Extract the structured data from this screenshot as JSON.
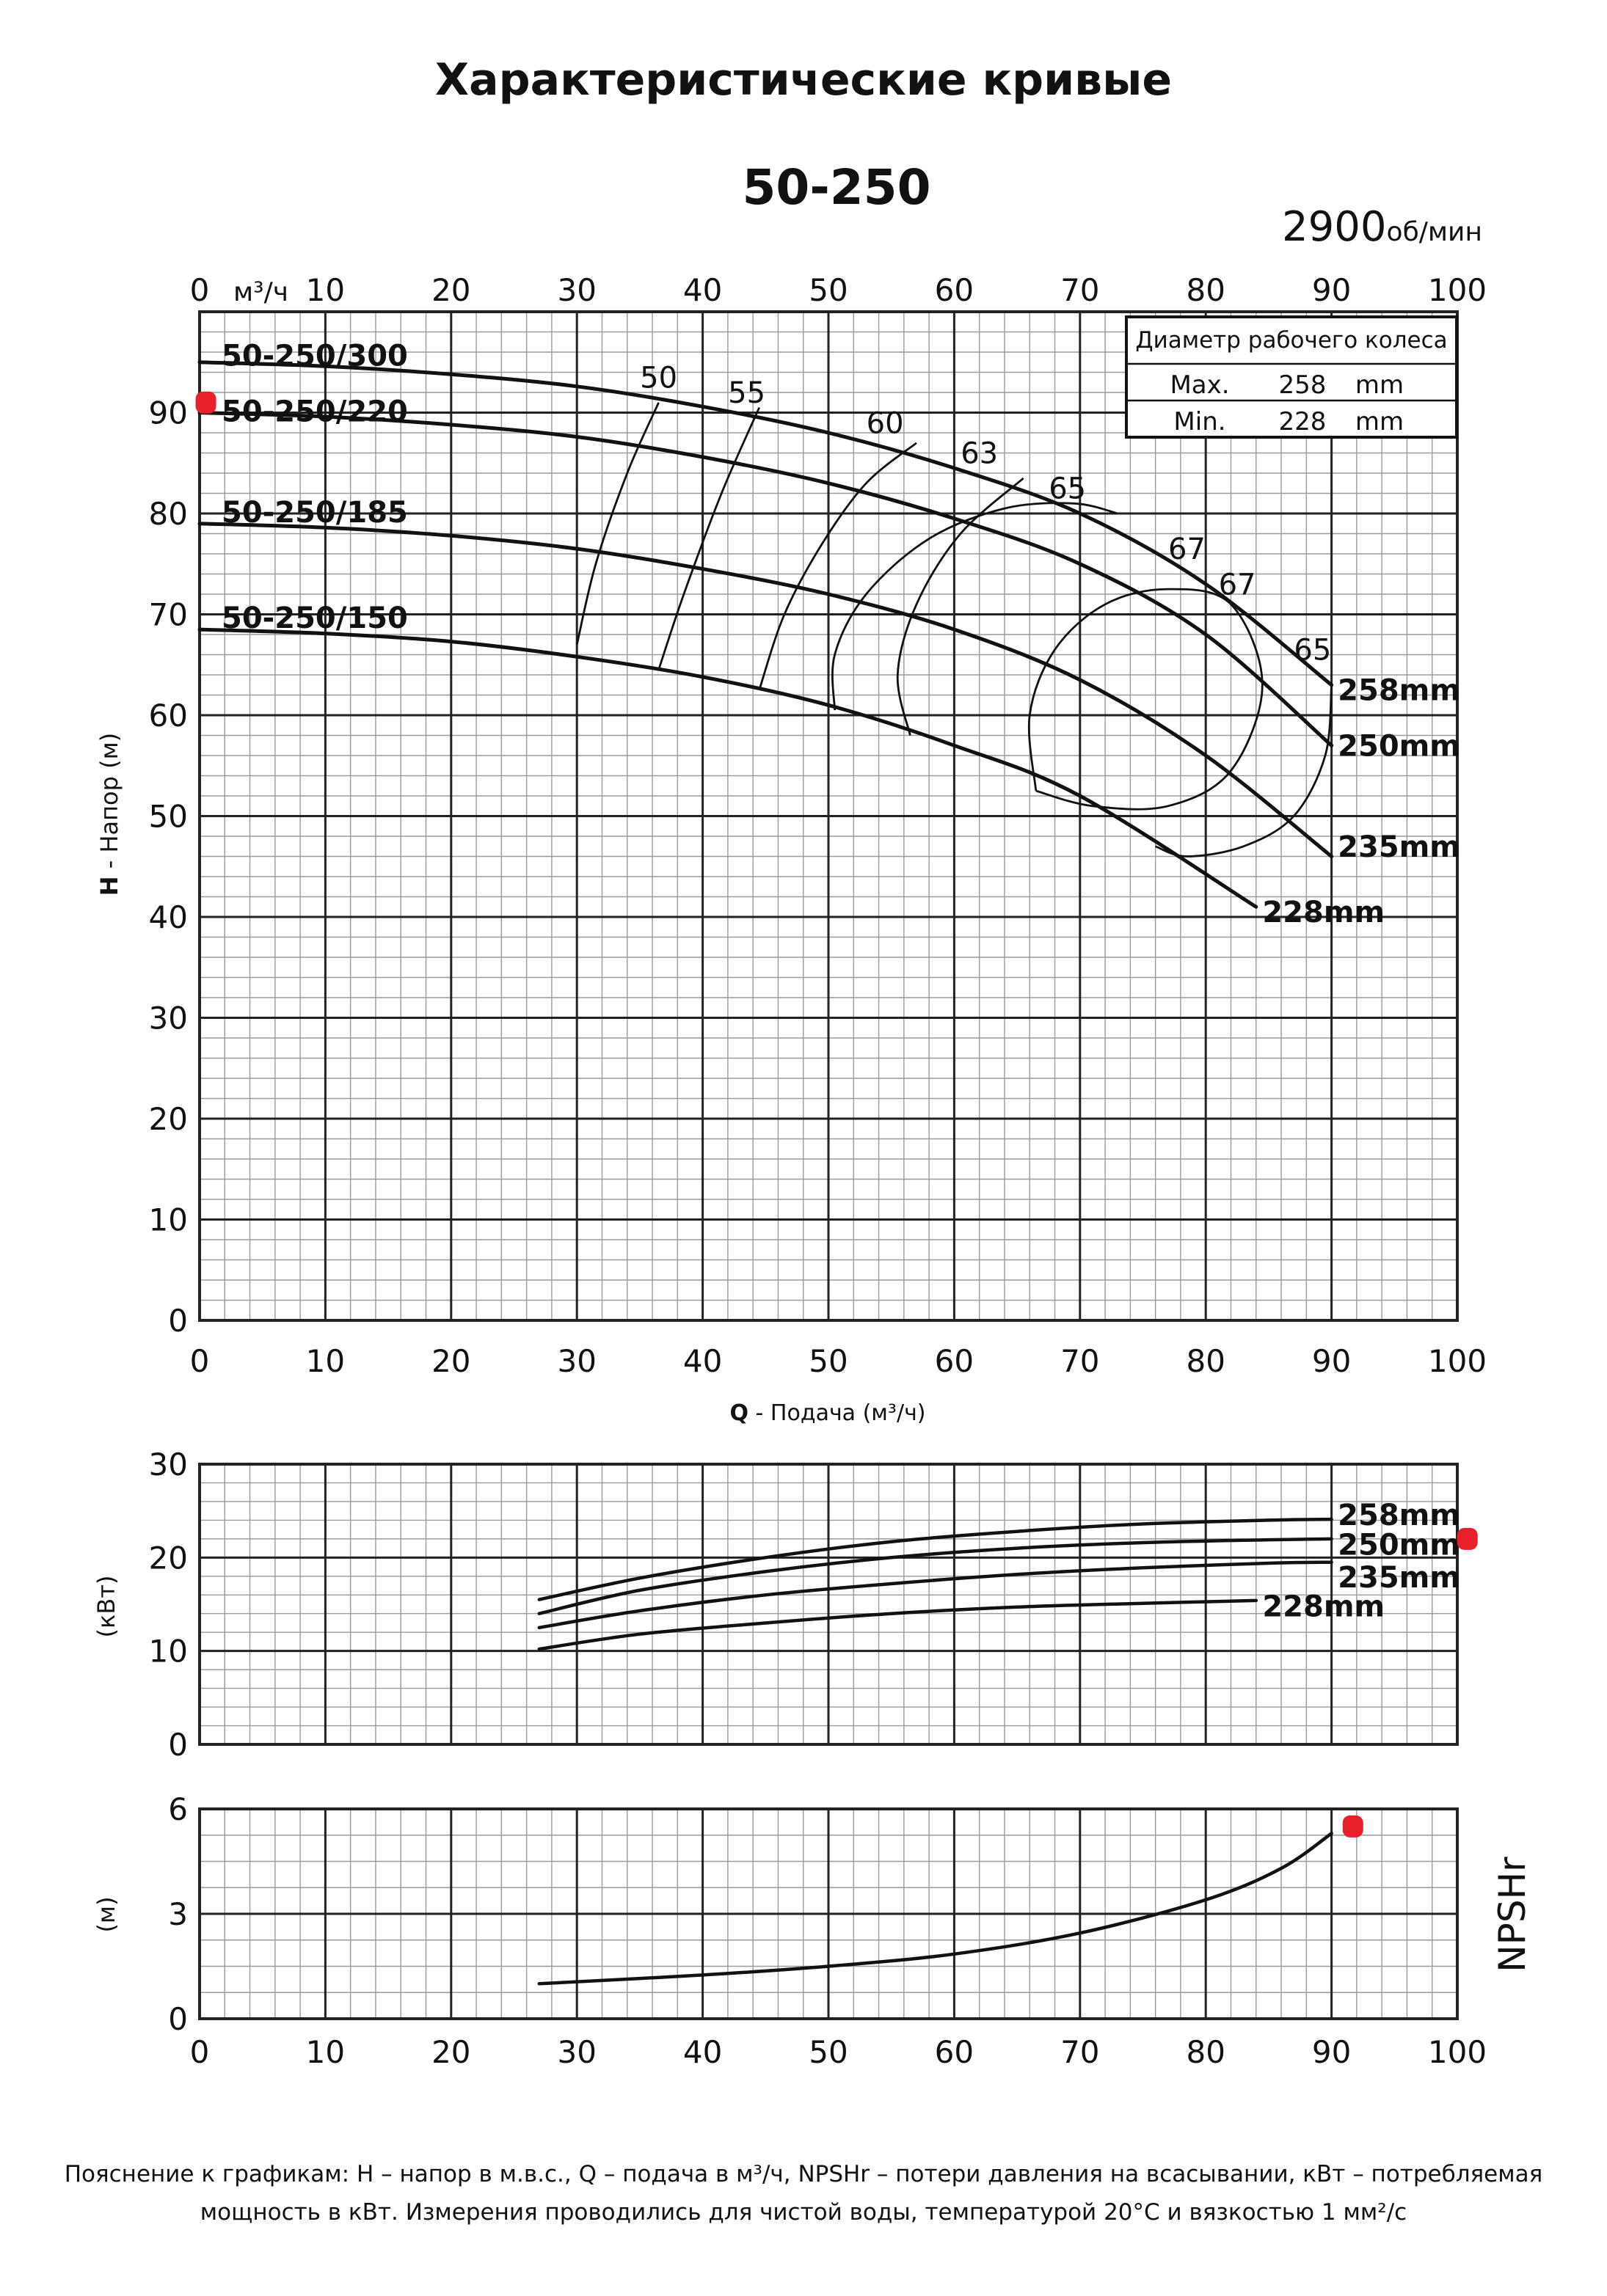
{
  "title": "Характеристические кривые",
  "footnote": {
    "line1": "Пояснение к графикам: H – напор в м.в.с., Q – подача в м³/ч, NPSHr – потери давления на всасывании, кВт – потребляемая",
    "line2": "мощность в кВт. Измерения проводились для чистой воды, температурой 20°C и вязкостью 1 мм²/с"
  },
  "colors": {
    "curve": "#111111",
    "grid_major": "#222222",
    "grid_minor": "#9a9a9a",
    "marker": "#e8202a"
  },
  "chart_data": [
    {
      "id": "head",
      "type": "line",
      "title": "50-250",
      "speed_value": "2900",
      "speed_unit": "об/мин",
      "xlabel_q": "Q",
      "xlabel_rest": " - Подача (м³/ч)",
      "top_axis_unit": "м³/ч",
      "ylabel_h": "H",
      "ylabel_rest": " - Напор (м)",
      "xlim": [
        0,
        100
      ],
      "ylim": [
        0,
        100
      ],
      "x_ticks": [
        0,
        10,
        20,
        30,
        40,
        50,
        60,
        70,
        80,
        90,
        100
      ],
      "y_ticks": [
        0,
        10,
        20,
        30,
        40,
        50,
        60,
        70,
        80,
        90
      ],
      "grid": true,
      "legend_box": {
        "title": "Диаметр рабочего колеса",
        "rows": [
          {
            "label": "Max.",
            "value": "258",
            "unit": "mm"
          },
          {
            "label": "Min.",
            "value": "228",
            "unit": "mm"
          }
        ]
      },
      "series": [
        {
          "name": "258mm",
          "model": "50-250/300",
          "x": [
            0,
            10,
            20,
            30,
            40,
            50,
            60,
            70,
            80,
            90
          ],
          "y": [
            95,
            94.6,
            93.8,
            92.6,
            90.6,
            88,
            84.5,
            80,
            73,
            63
          ]
        },
        {
          "name": "250mm",
          "model": "50-250/220",
          "x": [
            0,
            10,
            20,
            30,
            40,
            50,
            60,
            70,
            80,
            90
          ],
          "y": [
            90,
            89.6,
            88.8,
            87.6,
            85.6,
            83,
            79.5,
            75,
            68,
            57
          ]
        },
        {
          "name": "235mm",
          "model": "50-250/185",
          "x": [
            0,
            10,
            20,
            30,
            40,
            50,
            60,
            70,
            80,
            90
          ],
          "y": [
            79,
            78.6,
            77.8,
            76.5,
            74.5,
            72,
            68.5,
            63.5,
            56,
            46
          ]
        },
        {
          "name": "228mm",
          "model": "50-250/150",
          "x": [
            0,
            10,
            20,
            30,
            40,
            50,
            60,
            70,
            84
          ],
          "y": [
            68.5,
            68.1,
            67.3,
            65.8,
            63.8,
            61,
            57,
            52,
            41
          ]
        }
      ],
      "efficiency_contours": [
        {
          "label": "50",
          "x": [
            30,
            31.5,
            34,
            36.5
          ],
          "y": [
            67,
            75,
            84,
            91
          ]
        },
        {
          "label": "55",
          "x": [
            36.5,
            38.5,
            41.5,
            44.5
          ],
          "y": [
            64.5,
            72,
            82,
            90.5
          ]
        },
        {
          "label": "60",
          "x": [
            44.5,
            46.5,
            49.5,
            53,
            57
          ],
          "y": [
            62.5,
            70,
            77,
            83,
            87
          ]
        },
        {
          "label": "63",
          "x": [
            56.5,
            55.5,
            57,
            60.5,
            65.5
          ],
          "y": [
            58,
            64,
            71,
            78,
            83.5
          ]
        },
        {
          "label": "65",
          "x": [
            50.5,
            50.5,
            53,
            58,
            64,
            69.5,
            73
          ],
          "y": [
            60.5,
            66,
            72,
            77.5,
            80.5,
            81,
            80
          ]
        },
        {
          "label": "67",
          "x": [
            66.5,
            66,
            68,
            72,
            77,
            82,
            84.5,
            82,
            77,
            71,
            66.5
          ],
          "y": [
            52.5,
            60,
            66.5,
            71,
            72.5,
            71,
            63,
            54.5,
            51,
            51,
            52.5
          ]
        },
        {
          "label": "67",
          "x": [],
          "y": []
        },
        {
          "label": "65",
          "x": [
            90,
            89.5,
            87,
            83,
            78.5,
            76
          ],
          "y": [
            63,
            56,
            50,
            47,
            46,
            47
          ]
        }
      ],
      "markers": [
        {
          "x": 0.5,
          "y": 91
        }
      ]
    },
    {
      "id": "power",
      "type": "line",
      "ylabel": "(кВт)",
      "xlim": [
        0,
        100
      ],
      "ylim": [
        0,
        30
      ],
      "y_ticks": [
        0,
        10,
        20,
        30
      ],
      "grid": true,
      "series": [
        {
          "name": "258mm",
          "x": [
            27,
            35,
            45,
            55,
            65,
            75,
            85,
            90
          ],
          "y": [
            15.5,
            17.8,
            20,
            21.7,
            22.8,
            23.6,
            24,
            24.1
          ]
        },
        {
          "name": "250mm",
          "x": [
            27,
            35,
            45,
            55,
            65,
            75,
            85,
            90
          ],
          "y": [
            14,
            16.5,
            18.5,
            20,
            21,
            21.6,
            21.9,
            22
          ]
        },
        {
          "name": "235mm",
          "x": [
            27,
            35,
            45,
            55,
            65,
            75,
            85,
            90
          ],
          "y": [
            12.5,
            14.3,
            16,
            17.2,
            18.2,
            18.9,
            19.4,
            19.5
          ]
        },
        {
          "name": "228mm",
          "x": [
            27,
            35,
            45,
            55,
            65,
            75,
            84
          ],
          "y": [
            10.2,
            11.8,
            13,
            14,
            14.7,
            15.1,
            15.4
          ]
        }
      ],
      "markers": [
        {
          "x": 100.8,
          "y": 22
        }
      ]
    },
    {
      "id": "npsh",
      "type": "line",
      "ylabel": "(м)",
      "side_label": "NPSHr",
      "xlim": [
        0,
        100
      ],
      "ylim": [
        0,
        6
      ],
      "x_ticks": [
        0,
        10,
        20,
        30,
        40,
        50,
        60,
        70,
        80,
        90,
        100
      ],
      "y_ticks": [
        0,
        3,
        6
      ],
      "grid": true,
      "series": [
        {
          "name": "NPSHr",
          "x": [
            27,
            40,
            50,
            60,
            70,
            80,
            86,
            90
          ],
          "y": [
            1.0,
            1.25,
            1.5,
            1.85,
            2.45,
            3.4,
            4.3,
            5.3
          ]
        }
      ],
      "markers": [
        {
          "x": 91.7,
          "y": 5.5
        }
      ]
    }
  ]
}
